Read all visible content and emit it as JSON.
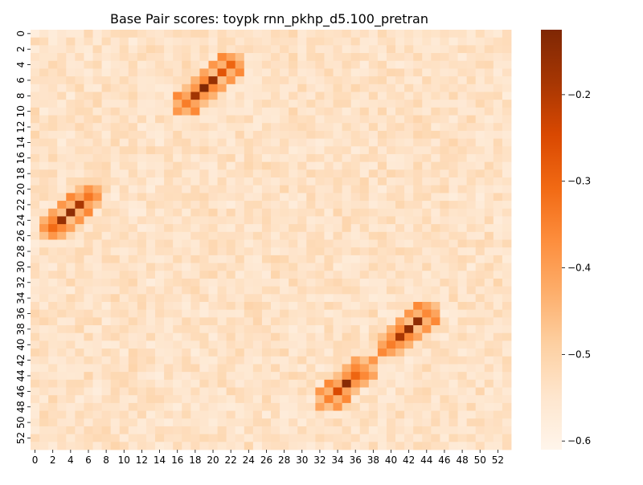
{
  "chart_data": {
    "type": "heatmap",
    "title": "Base Pair scores: toypk rnn_pkhp_d5.100_pretran",
    "n": 54,
    "x_tick_labels": [
      "0",
      "2",
      "4",
      "6",
      "8",
      "10",
      "12",
      "14",
      "16",
      "18",
      "20",
      "22",
      "24",
      "26",
      "28",
      "30",
      "32",
      "34",
      "36",
      "38",
      "40",
      "42",
      "44",
      "46",
      "48",
      "50",
      "52"
    ],
    "y_tick_labels": [
      "0",
      "2",
      "4",
      "6",
      "8",
      "10",
      "12",
      "14",
      "16",
      "18",
      "20",
      "22",
      "24",
      "26",
      "28",
      "30",
      "32",
      "34",
      "36",
      "38",
      "40",
      "42",
      "44",
      "46",
      "48",
      "50",
      "52"
    ],
    "colorbar": {
      "colormap": "Oranges",
      "vmin": -0.61,
      "vmax": -0.125,
      "tick_labels": [
        "−0.2",
        "−0.3",
        "−0.4",
        "−0.5",
        "−0.6"
      ],
      "tick_values": [
        -0.2,
        -0.3,
        -0.4,
        -0.5,
        -0.6
      ]
    },
    "background_value": -0.54,
    "stems": [
      {
        "name": "stem-1",
        "start_i": 21,
        "start_j": 6,
        "length": 5,
        "values": [
          -0.33,
          -0.19,
          -0.15,
          -0.16,
          -0.31
        ]
      },
      {
        "name": "stem-2",
        "start_i": 4,
        "start_j": 22,
        "length": 6,
        "values": [
          -0.3,
          -0.27,
          -0.16,
          -0.13,
          -0.18,
          -0.34
        ]
      },
      {
        "name": "stem-3",
        "start_i": 36,
        "start_j": 44,
        "length": 5,
        "values": [
          -0.4,
          -0.15,
          -0.15,
          -0.19,
          -0.34
        ]
      },
      {
        "name": "stem-4",
        "start_i": 43,
        "start_j": 37,
        "length": 5,
        "values": [
          -0.4,
          -0.3,
          -0.14,
          -0.25,
          -0.35
        ]
      }
    ]
  }
}
